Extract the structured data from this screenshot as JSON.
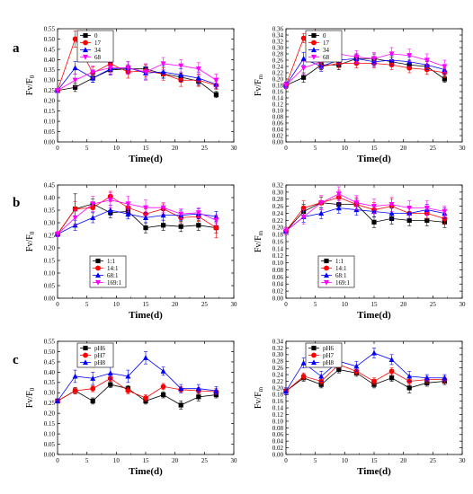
{
  "figure": {
    "row_labels": [
      "a",
      "b",
      "c"
    ]
  },
  "chart_data": [
    {
      "type": "line",
      "row": 0,
      "col": 0,
      "xlabel": "Time(d)",
      "ylabel": "Fv/F",
      "ylabel_sub": "0",
      "xlim": [
        0,
        30
      ],
      "xticks": [
        0,
        5,
        10,
        15,
        20,
        25,
        30
      ],
      "ylim": [
        0,
        0.55
      ],
      "yticks": [
        0,
        0.05,
        0.1,
        0.15,
        0.2,
        0.25,
        0.3,
        0.35,
        0.4,
        0.45,
        0.5,
        0.55
      ],
      "ytick_labels": [
        "0.00",
        "0.05",
        "0.10",
        "0.15",
        "0.20",
        "0.25",
        "0.30",
        "0.35",
        "0.40",
        "0.45",
        "0.50",
        "0.55"
      ],
      "legend_position": "top-left",
      "x": [
        0,
        3,
        6,
        9,
        12,
        15,
        18,
        21,
        24,
        27
      ],
      "series": [
        {
          "name": "0",
          "color": "#000000",
          "marker": "square",
          "values": [
            0.25,
            0.265,
            0.31,
            0.35,
            0.355,
            0.355,
            0.33,
            0.315,
            0.295,
            0.23
          ],
          "errors": [
            0.01,
            0.02,
            0.02,
            0.02,
            0.02,
            0.02,
            0.02,
            0.02,
            0.02,
            0.015
          ]
        },
        {
          "name": "17",
          "color": "#ff0000",
          "marker": "circle",
          "values": [
            0.25,
            0.5,
            0.335,
            0.38,
            0.34,
            0.345,
            0.33,
            0.3,
            0.3,
            0.275
          ],
          "errors": [
            0.01,
            0.04,
            0.03,
            0.03,
            0.03,
            0.03,
            0.03,
            0.03,
            0.03,
            0.02
          ]
        },
        {
          "name": "34",
          "color": "#0000ff",
          "marker": "triangle",
          "values": [
            0.25,
            0.36,
            0.31,
            0.355,
            0.36,
            0.335,
            0.34,
            0.325,
            0.31,
            0.28
          ],
          "errors": [
            0.01,
            0.03,
            0.02,
            0.03,
            0.03,
            0.03,
            0.03,
            0.03,
            0.03,
            0.02
          ]
        },
        {
          "name": "68",
          "color": "#ff00ff",
          "marker": "down-triangle",
          "values": [
            0.25,
            0.3,
            0.34,
            0.36,
            0.36,
            0.34,
            0.38,
            0.37,
            0.355,
            0.3
          ],
          "errors": [
            0.01,
            0.03,
            0.03,
            0.03,
            0.03,
            0.04,
            0.03,
            0.03,
            0.03,
            0.03
          ]
        }
      ]
    },
    {
      "type": "line",
      "row": 0,
      "col": 1,
      "xlabel": "Time(d)",
      "ylabel": "Fv/F",
      "ylabel_sub": "m",
      "xlim": [
        0,
        30
      ],
      "xticks": [
        0,
        5,
        10,
        15,
        20,
        25,
        30
      ],
      "ylim": [
        0,
        0.36
      ],
      "yticks": [
        0,
        0.02,
        0.04,
        0.06,
        0.08,
        0.1,
        0.12,
        0.14,
        0.16,
        0.18,
        0.2,
        0.22,
        0.24,
        0.26,
        0.28,
        0.3,
        0.32,
        0.34,
        0.36
      ],
      "ytick_labels": [
        "0.00",
        "0.02",
        "0.04",
        "0.06",
        "0.08",
        "0.10",
        "0.12",
        "0.14",
        "0.16",
        "0.18",
        "0.20",
        "0.22",
        "0.24",
        "0.26",
        "0.28",
        "0.30",
        "0.32",
        "0.34",
        "0.36"
      ],
      "legend_position": "top-left",
      "x": [
        0,
        3,
        6,
        9,
        12,
        15,
        18,
        21,
        24,
        27
      ],
      "series": [
        {
          "name": "0",
          "color": "#000000",
          "marker": "square",
          "values": [
            0.18,
            0.205,
            0.245,
            0.245,
            0.265,
            0.265,
            0.255,
            0.245,
            0.24,
            0.2
          ],
          "errors": [
            0.01,
            0.015,
            0.015,
            0.015,
            0.015,
            0.015,
            0.015,
            0.015,
            0.015,
            0.01
          ]
        },
        {
          "name": "17",
          "color": "#ff0000",
          "marker": "circle",
          "values": [
            0.18,
            0.33,
            0.24,
            0.25,
            0.25,
            0.25,
            0.245,
            0.235,
            0.23,
            0.22
          ],
          "errors": [
            0.01,
            0.015,
            0.015,
            0.015,
            0.015,
            0.015,
            0.015,
            0.015,
            0.015,
            0.015
          ]
        },
        {
          "name": "34",
          "color": "#0000ff",
          "marker": "triangle",
          "values": [
            0.18,
            0.265,
            0.24,
            0.26,
            0.265,
            0.255,
            0.26,
            0.255,
            0.245,
            0.23
          ],
          "errors": [
            0.01,
            0.02,
            0.015,
            0.015,
            0.015,
            0.015,
            0.015,
            0.015,
            0.015,
            0.015
          ]
        },
        {
          "name": "68",
          "color": "#ff00ff",
          "marker": "down-triangle",
          "values": [
            0.18,
            0.235,
            0.255,
            0.28,
            0.27,
            0.265,
            0.28,
            0.275,
            0.26,
            0.24
          ],
          "errors": [
            0.01,
            0.02,
            0.02,
            0.02,
            0.02,
            0.02,
            0.02,
            0.02,
            0.02,
            0.02
          ]
        }
      ]
    },
    {
      "type": "line",
      "row": 1,
      "col": 0,
      "xlabel": "Time(d)",
      "ylabel": "Fv/F",
      "ylabel_sub": "0",
      "xlim": [
        0,
        30
      ],
      "xticks": [
        0,
        5,
        10,
        15,
        20,
        25,
        30
      ],
      "ylim": [
        0,
        0.45
      ],
      "yticks": [
        0,
        0.05,
        0.1,
        0.15,
        0.2,
        0.25,
        0.3,
        0.35,
        0.4,
        0.45
      ],
      "ytick_labels": [
        "0.00",
        "0.05",
        "0.10",
        "0.15",
        "0.20",
        "0.25",
        "0.30",
        "0.35",
        "0.40",
        "0.45"
      ],
      "legend_position": "bottom-center",
      "x": [
        0,
        3,
        6,
        9,
        12,
        15,
        18,
        21,
        24,
        27
      ],
      "series": [
        {
          "name": "1:1",
          "color": "#000000",
          "marker": "square",
          "values": [
            0.255,
            0.355,
            0.375,
            0.34,
            0.345,
            0.28,
            0.29,
            0.285,
            0.29,
            0.28
          ],
          "errors": [
            0.01,
            0.06,
            0.02,
            0.02,
            0.02,
            0.02,
            0.02,
            0.02,
            0.02,
            0.02
          ]
        },
        {
          "name": "14:1",
          "color": "#ff0000",
          "marker": "circle",
          "values": [
            0.255,
            0.355,
            0.36,
            0.405,
            0.36,
            0.335,
            0.355,
            0.32,
            0.325,
            0.28
          ],
          "errors": [
            0.01,
            0.03,
            0.02,
            0.02,
            0.02,
            0.02,
            0.02,
            0.02,
            0.02,
            0.04
          ]
        },
        {
          "name": "68:1",
          "color": "#0000ff",
          "marker": "triangle",
          "values": [
            0.255,
            0.29,
            0.32,
            0.35,
            0.335,
            0.32,
            0.33,
            0.33,
            0.335,
            0.325
          ],
          "errors": [
            0.01,
            0.02,
            0.02,
            0.02,
            0.02,
            0.02,
            0.02,
            0.02,
            0.02,
            0.02
          ]
        },
        {
          "name": "169:1",
          "color": "#ff00ff",
          "marker": "down-triangle",
          "values": [
            0.255,
            0.32,
            0.375,
            0.39,
            0.375,
            0.36,
            0.36,
            0.335,
            0.34,
            0.31
          ],
          "errors": [
            0.01,
            0.03,
            0.03,
            0.03,
            0.03,
            0.03,
            0.02,
            0.02,
            0.02,
            0.02
          ]
        }
      ]
    },
    {
      "type": "line",
      "row": 1,
      "col": 1,
      "xlabel": "Time(d)",
      "ylabel": "Fv/F",
      "ylabel_sub": "m",
      "xlim": [
        0,
        30
      ],
      "xticks": [
        0,
        5,
        10,
        15,
        20,
        25,
        30
      ],
      "ylim": [
        0,
        0.32
      ],
      "yticks": [
        0,
        0.02,
        0.04,
        0.06,
        0.08,
        0.1,
        0.12,
        0.14,
        0.16,
        0.18,
        0.2,
        0.22,
        0.24,
        0.26,
        0.28,
        0.3,
        0.32
      ],
      "ytick_labels": [
        "0.00",
        "0.02",
        "0.04",
        "0.06",
        "0.08",
        "0.10",
        "0.12",
        "0.14",
        "0.16",
        "0.18",
        "0.20",
        "0.22",
        "0.24",
        "0.26",
        "0.28",
        "0.30",
        "0.32"
      ],
      "legend_position": "bottom-center",
      "x": [
        0,
        3,
        6,
        9,
        12,
        15,
        18,
        21,
        24,
        27
      ],
      "series": [
        {
          "name": "1:1",
          "color": "#000000",
          "marker": "square",
          "values": [
            0.19,
            0.245,
            0.27,
            0.265,
            0.265,
            0.215,
            0.225,
            0.22,
            0.22,
            0.215
          ],
          "errors": [
            0.01,
            0.02,
            0.015,
            0.015,
            0.015,
            0.015,
            0.015,
            0.015,
            0.015,
            0.015
          ]
        },
        {
          "name": "14:1",
          "color": "#ff0000",
          "marker": "circle",
          "values": [
            0.19,
            0.255,
            0.27,
            0.285,
            0.265,
            0.25,
            0.26,
            0.24,
            0.24,
            0.225
          ],
          "errors": [
            0.01,
            0.02,
            0.02,
            0.02,
            0.02,
            0.02,
            0.02,
            0.015,
            0.015,
            0.015
          ]
        },
        {
          "name": "68:1",
          "color": "#0000ff",
          "marker": "triangle",
          "values": [
            0.19,
            0.23,
            0.24,
            0.255,
            0.25,
            0.245,
            0.24,
            0.24,
            0.25,
            0.24
          ],
          "errors": [
            0.01,
            0.015,
            0.015,
            0.015,
            0.015,
            0.015,
            0.015,
            0.015,
            0.015,
            0.015
          ]
        },
        {
          "name": "169:1",
          "color": "#ff00ff",
          "marker": "down-triangle",
          "values": [
            0.19,
            0.23,
            0.27,
            0.295,
            0.27,
            0.26,
            0.265,
            0.255,
            0.255,
            0.245
          ],
          "errors": [
            0.01,
            0.02,
            0.02,
            0.02,
            0.02,
            0.02,
            0.02,
            0.02,
            0.02,
            0.015
          ]
        }
      ]
    },
    {
      "type": "line",
      "row": 2,
      "col": 0,
      "xlabel": "Time(d)",
      "ylabel": "Fv/F",
      "ylabel_sub": "0",
      "xlim": [
        0,
        30
      ],
      "xticks": [
        0,
        5,
        10,
        15,
        20,
        25,
        30
      ],
      "ylim": [
        0,
        0.55
      ],
      "yticks": [
        0,
        0.05,
        0.1,
        0.15,
        0.2,
        0.25,
        0.3,
        0.35,
        0.4,
        0.45,
        0.5,
        0.55
      ],
      "ytick_labels": [
        "0.00",
        "0.05",
        "0.10",
        "0.15",
        "0.20",
        "0.25",
        "0.30",
        "0.35",
        "0.40",
        "0.45",
        "0.50",
        "0.55"
      ],
      "legend_position": "top-left",
      "x": [
        0,
        3,
        6,
        9,
        12,
        15,
        18,
        21,
        24,
        27
      ],
      "series": [
        {
          "name": "pH6",
          "color": "#000000",
          "marker": "square",
          "values": [
            0.26,
            0.31,
            0.26,
            0.34,
            0.32,
            0.26,
            0.29,
            0.24,
            0.28,
            0.29
          ],
          "errors": [
            0.01,
            0.015,
            0.015,
            0.015,
            0.015,
            0.015,
            0.015,
            0.02,
            0.02,
            0.015
          ]
        },
        {
          "name": "pH7",
          "color": "#ff0000",
          "marker": "circle",
          "values": [
            0.26,
            0.31,
            0.32,
            0.37,
            0.31,
            0.275,
            0.33,
            0.315,
            0.31,
            0.305
          ],
          "errors": [
            0.01,
            0.015,
            0.015,
            0.015,
            0.015,
            0.015,
            0.015,
            0.015,
            0.015,
            0.015
          ]
        },
        {
          "name": "pH8",
          "color": "#0000ff",
          "marker": "triangle",
          "values": [
            0.26,
            0.38,
            0.37,
            0.395,
            0.38,
            0.47,
            0.405,
            0.32,
            0.32,
            0.31
          ],
          "errors": [
            0.01,
            0.03,
            0.03,
            0.03,
            0.03,
            0.03,
            0.02,
            0.02,
            0.02,
            0.02
          ]
        }
      ]
    },
    {
      "type": "line",
      "row": 2,
      "col": 1,
      "xlabel": "Time(d)",
      "ylabel": "Fv/F",
      "ylabel_sub": "m",
      "xlim": [
        0,
        30
      ],
      "xticks": [
        0,
        5,
        10,
        15,
        20,
        25,
        30
      ],
      "ylim": [
        0,
        0.34
      ],
      "yticks": [
        0,
        0.02,
        0.04,
        0.06,
        0.08,
        0.1,
        0.12,
        0.14,
        0.16,
        0.18,
        0.2,
        0.22,
        0.24,
        0.26,
        0.28,
        0.3,
        0.32,
        0.34
      ],
      "ytick_labels": [
        "0.00",
        "0.02",
        "0.04",
        "0.06",
        "0.08",
        "0.10",
        "0.12",
        "0.14",
        "0.16",
        "0.18",
        "0.20",
        "0.22",
        "0.24",
        "0.26",
        "0.28",
        "0.30",
        "0.32",
        "0.34"
      ],
      "legend_position": "top-left",
      "x": [
        0,
        3,
        6,
        9,
        12,
        15,
        18,
        21,
        24,
        27
      ],
      "series": [
        {
          "name": "pH6",
          "color": "#000000",
          "marker": "square",
          "values": [
            0.19,
            0.23,
            0.21,
            0.255,
            0.245,
            0.21,
            0.23,
            0.2,
            0.215,
            0.22
          ],
          "errors": [
            0.01,
            0.01,
            0.01,
            0.01,
            0.01,
            0.01,
            0.01,
            0.015,
            0.01,
            0.01
          ]
        },
        {
          "name": "pH7",
          "color": "#ff0000",
          "marker": "circle",
          "values": [
            0.19,
            0.235,
            0.22,
            0.27,
            0.25,
            0.22,
            0.25,
            0.22,
            0.225,
            0.225
          ],
          "errors": [
            0.01,
            0.01,
            0.01,
            0.01,
            0.01,
            0.01,
            0.01,
            0.01,
            0.01,
            0.01
          ]
        },
        {
          "name": "pH8",
          "color": "#0000ff",
          "marker": "triangle",
          "values": [
            0.19,
            0.275,
            0.235,
            0.28,
            0.265,
            0.305,
            0.285,
            0.235,
            0.23,
            0.23
          ],
          "errors": [
            0.01,
            0.015,
            0.015,
            0.015,
            0.015,
            0.015,
            0.015,
            0.015,
            0.01,
            0.01
          ]
        }
      ]
    }
  ]
}
